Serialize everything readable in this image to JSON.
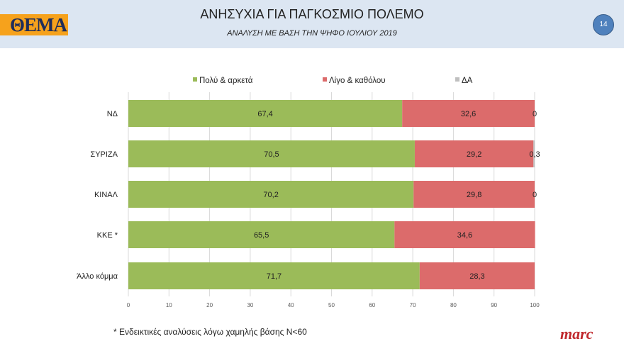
{
  "header": {
    "logo": "ΘΕΜΑ",
    "title": "ΑΝΗΣΥΧΙΑ ΓΙΑ ΠΑΓΚΟΣΜΙΟ ΠΟΛΕΜΟ",
    "subtitle": "ΑΝΑΛΥΣΗ ΜΕ ΒΑΣΗ ΤΗΝ ΨΗΦΟ ΙΟΥΛΙΟΥ 2019",
    "page_number": "14"
  },
  "footer": {
    "note": "* Ενδεικτικές αναλύσεις λόγω χαμηλής βάσης Ν<60",
    "brand": "marc"
  },
  "chart_data": {
    "type": "bar",
    "orientation": "horizontal",
    "stacked": true,
    "categories": [
      "ΝΔ",
      "ΣΥΡΙΖΑ",
      "ΚΙΝΑΛ",
      "ΚΚΕ *",
      "Άλλο κόμμα"
    ],
    "series": [
      {
        "name": "Πολύ & αρκετά",
        "color": "#9bbb59",
        "values": [
          67.4,
          70.5,
          70.2,
          65.5,
          71.7
        ],
        "labels": [
          "67,4",
          "70,5",
          "70,2",
          "65,5",
          "71,7"
        ]
      },
      {
        "name": "Λίγο & καθόλου",
        "color": "#dc6b6b",
        "values": [
          32.6,
          29.2,
          29.8,
          34.6,
          28.3
        ],
        "labels": [
          "32,6",
          "29,2",
          "29,8",
          "34,6",
          "28,3"
        ]
      },
      {
        "name": "ΔΑ",
        "color": "#bfbfbf",
        "values": [
          0,
          0.3,
          0,
          null,
          null
        ],
        "labels": [
          "0",
          "0,3",
          "0",
          null,
          null
        ]
      }
    ],
    "xlim": [
      0,
      100
    ],
    "xticks": [
      0,
      10,
      20,
      30,
      40,
      50,
      60,
      70,
      80,
      90,
      100
    ],
    "xtick_labels": [
      "0",
      "10",
      "20",
      "30",
      "40",
      "50",
      "60",
      "70",
      "80",
      "90",
      "100"
    ],
    "grid": "vertical",
    "legend": "top"
  }
}
